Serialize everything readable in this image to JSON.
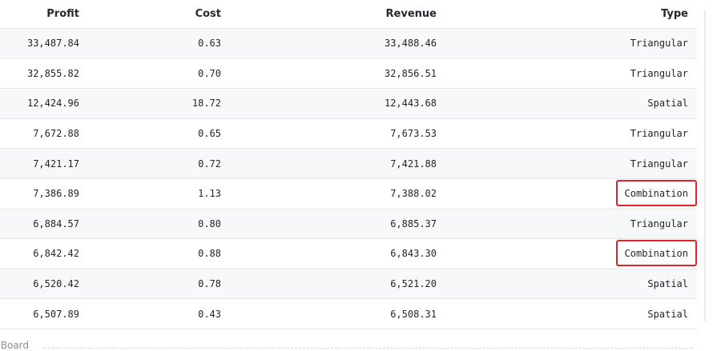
{
  "table": {
    "headers": {
      "profit": "Profit",
      "cost": "Cost",
      "revenue": "Revenue",
      "type": "Type"
    },
    "rows": [
      {
        "profit": "33,487.84",
        "cost": "0.63",
        "revenue": "33,488.46",
        "type": "Triangular"
      },
      {
        "profit": "32,855.82",
        "cost": "0.70",
        "revenue": "32,856.51",
        "type": "Triangular"
      },
      {
        "profit": "12,424.96",
        "cost": "18.72",
        "revenue": "12,443.68",
        "type": "Spatial"
      },
      {
        "profit": "7,672.88",
        "cost": "0.65",
        "revenue": "7,673.53",
        "type": "Triangular"
      },
      {
        "profit": "7,421.17",
        "cost": "0.72",
        "revenue": "7,421.88",
        "type": "Triangular"
      },
      {
        "profit": "7,386.89",
        "cost": "1.13",
        "revenue": "7,388.02",
        "type": "Combination"
      },
      {
        "profit": "6,884.57",
        "cost": "0.80",
        "revenue": "6,885.37",
        "type": "Triangular"
      },
      {
        "profit": "6,842.42",
        "cost": "0.88",
        "revenue": "6,843.30",
        "type": "Combination"
      },
      {
        "profit": "6,520.42",
        "cost": "0.78",
        "revenue": "6,521.20",
        "type": "Spatial"
      },
      {
        "profit": "6,507.89",
        "cost": "0.43",
        "revenue": "6,508.31",
        "type": "Spatial"
      }
    ]
  },
  "highlighted_type": "Combination",
  "footer": {
    "label": "r Board"
  },
  "colors": {
    "highlight": "#e02424",
    "stripe": "#f7f8f9",
    "border": "#e3e5e8"
  }
}
